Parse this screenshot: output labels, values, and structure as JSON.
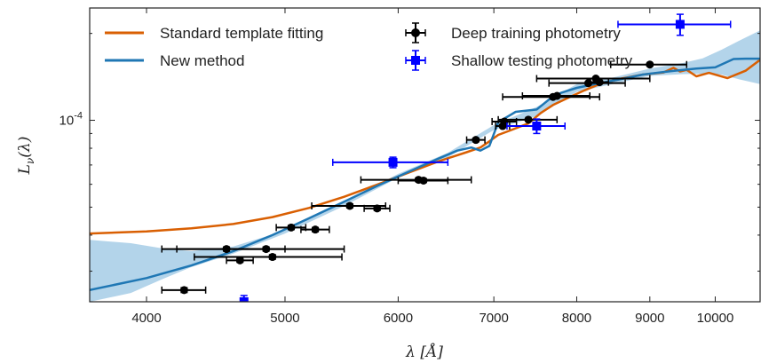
{
  "chart_data": {
    "type": "line",
    "xscale": "log",
    "yscale": "log",
    "xlim": [
      3650,
      10750
    ],
    "ylim": [
      2.35e-05,
      0.000245
    ],
    "x_ticks": [
      4000,
      5000,
      6000,
      7000,
      8000,
      9000,
      10000
    ],
    "x_tick_labels": [
      "4000",
      "5000",
      "6000",
      "7000",
      "8000",
      "9000",
      "10000"
    ],
    "y_ticks": [
      0.0001
    ],
    "y_tick_labels": [
      "10^-4"
    ],
    "y_tick_label": {
      "base": "10",
      "exponent": "-4"
    },
    "xlabel": {
      "symbol": "λ",
      "unit": "[Å]"
    },
    "ylabel": {
      "symbol": "L",
      "subscript": "ν",
      "arg": "(λ)"
    },
    "legend": {
      "placement": "top",
      "entries": [
        {
          "label": "Standard template fitting",
          "series": "standard"
        },
        {
          "label": "New method",
          "series": "new"
        },
        {
          "label": "Deep training photometry",
          "series": "deep"
        },
        {
          "label": "Shallow testing photometry",
          "series": "shallow"
        }
      ]
    },
    "colors": {
      "standard": "#d95f02",
      "new": "#1f77b4",
      "band": "#a6cde6",
      "deep": "#000000",
      "shallow": "#0000ff"
    },
    "series": [
      {
        "key": "standard",
        "style": "line",
        "x": [
          3650,
          4000,
          4300,
          4600,
          4900,
          5200,
          5500,
          5800,
          6100,
          6400,
          6700,
          6850,
          6950,
          7050,
          7200,
          7400,
          7550,
          7700,
          7900,
          8100,
          8300,
          8600,
          8900,
          9200,
          9350,
          9450,
          9550,
          9700,
          9900,
          10200,
          10500,
          10750
        ],
        "y": [
          4.05e-05,
          4.12e-05,
          4.22e-05,
          4.37e-05,
          4.62e-05,
          4.97e-05,
          5.43e-05,
          5.98e-05,
          6.58e-05,
          7.2e-05,
          7.75e-05,
          8.05e-05,
          8.45e-05,
          8.9e-05,
          9.25e-05,
          9.75e-05,
          0.000106,
          0.000113,
          0.00012,
          0.000127,
          0.0001335,
          0.0001395,
          0.000144,
          0.0001465,
          0.000152,
          0.0001475,
          0.0001495,
          0.000142,
          0.000146,
          0.00014,
          0.0001485,
          0.000162
        ]
      },
      {
        "key": "new",
        "style": "line",
        "x": [
          3650,
          4000,
          4300,
          4600,
          4900,
          5200,
          5500,
          5800,
          6100,
          6400,
          6600,
          6750,
          6850,
          6950,
          7050,
          7250,
          7500,
          7650,
          7800,
          8000,
          8300,
          8600,
          8900,
          9300,
          9700,
          10000,
          10300,
          10500,
          10750
        ],
        "y": [
          2.58e-05,
          2.84e-05,
          3.14e-05,
          3.52e-05,
          4e-05,
          4.58e-05,
          5.22e-05,
          5.92e-05,
          6.63e-05,
          7.36e-05,
          7.85e-05,
          8.05e-05,
          7.85e-05,
          8.15e-05,
          9.85e-05,
          0.000107,
          0.000109,
          0.000118,
          0.0001245,
          0.0001295,
          0.0001345,
          0.000139,
          0.000144,
          0.000148,
          0.000151,
          0.0001525,
          0.000163,
          0.0001635,
          0.0001635
        ]
      },
      {
        "key": "new_band",
        "style": "band",
        "x": [
          3650,
          3900,
          4100,
          4300,
          4600,
          5000,
          5500,
          6000,
          6500,
          7000,
          7500,
          8000,
          8500,
          9000,
          9500,
          9800,
          10100,
          10400,
          10750
        ],
        "lower": [
          2.35e-05,
          2.52e-05,
          2.81e-05,
          3.1e-05,
          3.45e-05,
          4.05e-05,
          5.05e-05,
          6.32e-05,
          7.45e-05,
          9.25e-05,
          0.0001035,
          0.0001255,
          0.000134,
          0.0001425,
          0.0001445,
          0.000145,
          0.000144,
          0.0001385,
          0.0001335
        ],
        "upper": [
          3.85e-05,
          3.75e-05,
          3.6e-05,
          3.52e-05,
          3.65e-05,
          4.15e-05,
          5.22e-05,
          6.52e-05,
          7.72e-05,
          9.62e-05,
          0.0001112,
          0.0001335,
          0.000141,
          0.000151,
          0.000158,
          0.000164,
          0.0001755,
          0.000189,
          0.000205
        ]
      },
      {
        "key": "deep",
        "style": "errorbar",
        "marker": "circle",
        "points": [
          {
            "x": 4250,
            "y": 2.58e-05,
            "xerr": [
              150,
              150
            ],
            "yerr": [
              5e-07,
              5e-07
            ]
          },
          {
            "x": 4550,
            "y": 3.58e-05,
            "xerr": [
              450,
              450
            ],
            "yerr": [
              6e-07,
              6e-07
            ]
          },
          {
            "x": 4650,
            "y": 3.27e-05,
            "xerr": [
              100,
              100
            ],
            "yerr": [
              5e-07,
              5e-07
            ]
          },
          {
            "x": 4850,
            "y": 3.58e-05,
            "xerr": [
              650,
              650
            ],
            "yerr": [
              6e-07,
              6e-07
            ]
          },
          {
            "x": 4900,
            "y": 3.36e-05,
            "xerr": [
              580,
              580
            ],
            "yerr": [
              6e-07,
              6e-07
            ]
          },
          {
            "x": 5050,
            "y": 4.25e-05,
            "xerr": [
              120,
              120
            ],
            "yerr": [
              7e-07,
              7e-07
            ]
          },
          {
            "x": 5250,
            "y": 4.18e-05,
            "xerr": [
              120,
              120
            ],
            "yerr": [
              7e-07,
              7e-07
            ]
          },
          {
            "x": 5550,
            "y": 5.05e-05,
            "xerr": [
              330,
              330
            ],
            "yerr": [
              8e-07,
              8e-07
            ]
          },
          {
            "x": 5800,
            "y": 4.95e-05,
            "xerr": [
              120,
              120
            ],
            "yerr": [
              8e-07,
              8e-07
            ]
          },
          {
            "x": 6200,
            "y": 6.22e-05,
            "xerr": [
              550,
              550
            ],
            "yerr": [
              9e-07,
              9e-07
            ]
          },
          {
            "x": 6250,
            "y": 6.18e-05,
            "xerr": [
              250,
              250
            ],
            "yerr": [
              9e-07,
              9e-07
            ]
          },
          {
            "x": 6800,
            "y": 8.55e-05,
            "xerr": [
              100,
              100
            ],
            "yerr": [
              1.2e-06,
              1.2e-06
            ]
          },
          {
            "x": 7100,
            "y": 9.55e-05,
            "xerr": [
              80,
              80
            ],
            "yerr": [
              1e-06,
              1e-06
            ]
          },
          {
            "x": 7120,
            "y": 9.9e-05,
            "xerr": [
              140,
              140
            ],
            "yerr": [
              1e-06,
              1e-06
            ]
          },
          {
            "x": 7400,
            "y": 0.0001005,
            "xerr": [
              350,
              350
            ],
            "yerr": [
              1e-06,
              1e-06
            ]
          },
          {
            "x": 7700,
            "y": 0.0001205,
            "xerr": [
              600,
              600
            ],
            "yerr": [
              1.2e-06,
              1.2e-06
            ]
          },
          {
            "x": 7750,
            "y": 0.0001215,
            "xerr": [
              420,
              420
            ],
            "yerr": [
              1.2e-06,
              1.2e-06
            ]
          },
          {
            "x": 8150,
            "y": 0.0001345,
            "xerr": [
              500,
              500
            ],
            "yerr": [
              1.3e-06,
              1.3e-06
            ]
          },
          {
            "x": 8250,
            "y": 0.0001395,
            "xerr": [
              750,
              750
            ],
            "yerr": [
              1.4e-06,
              1.4e-06
            ]
          },
          {
            "x": 8300,
            "y": 0.0001355,
            "xerr": [
              120,
              120
            ],
            "yerr": [
              1.3e-06,
              1.3e-06
            ]
          },
          {
            "x": 9000,
            "y": 0.000156,
            "xerr": [
              550,
              550
            ],
            "yerr": [
              1.5e-06,
              1.5e-06
            ]
          }
        ]
      },
      {
        "key": "shallow",
        "style": "errorbar",
        "marker": "square",
        "points": [
          {
            "x": 4680,
            "y": 2.35e-05,
            "xerr": [
              0,
              0
            ],
            "yerr": [
              1.2e-06,
              1.2e-06
            ]
          },
          {
            "x": 5950,
            "y": 7.15e-05,
            "xerr": [
              550,
              550
            ],
            "yerr": [
              3e-06,
              3e-06
            ]
          },
          {
            "x": 7500,
            "y": 9.55e-05,
            "xerr": [
              350,
              350
            ],
            "yerr": [
              5.5e-06,
              5.5e-06
            ]
          },
          {
            "x": 9450,
            "y": 0.000215,
            "xerr": [
              900,
              800
            ],
            "yerr": [
              1.8e-05,
              1.8e-05
            ]
          }
        ]
      }
    ]
  }
}
